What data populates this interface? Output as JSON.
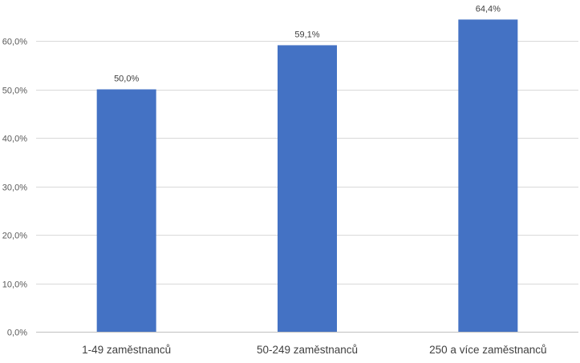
{
  "chart_data": {
    "type": "bar",
    "categories": [
      "1-49 zaměstnanců",
      "50-249 zaměstnanců",
      "250 a více zaměstnanců"
    ],
    "values": [
      50.0,
      59.1,
      64.4
    ],
    "data_labels": [
      "50,0%",
      "59,1%",
      "64,4%"
    ],
    "title": "",
    "xlabel": "",
    "ylabel": "",
    "ylim": [
      0,
      70
    ],
    "y_ticks": [
      0,
      10,
      20,
      30,
      40,
      50,
      60
    ],
    "y_tick_labels": [
      "0,0%",
      "10,0%",
      "20,0%",
      "30,0%",
      "40,0%",
      "50,0%",
      "60,0%"
    ],
    "grid": true,
    "legend": "none",
    "bar_color": "#4472c4"
  }
}
